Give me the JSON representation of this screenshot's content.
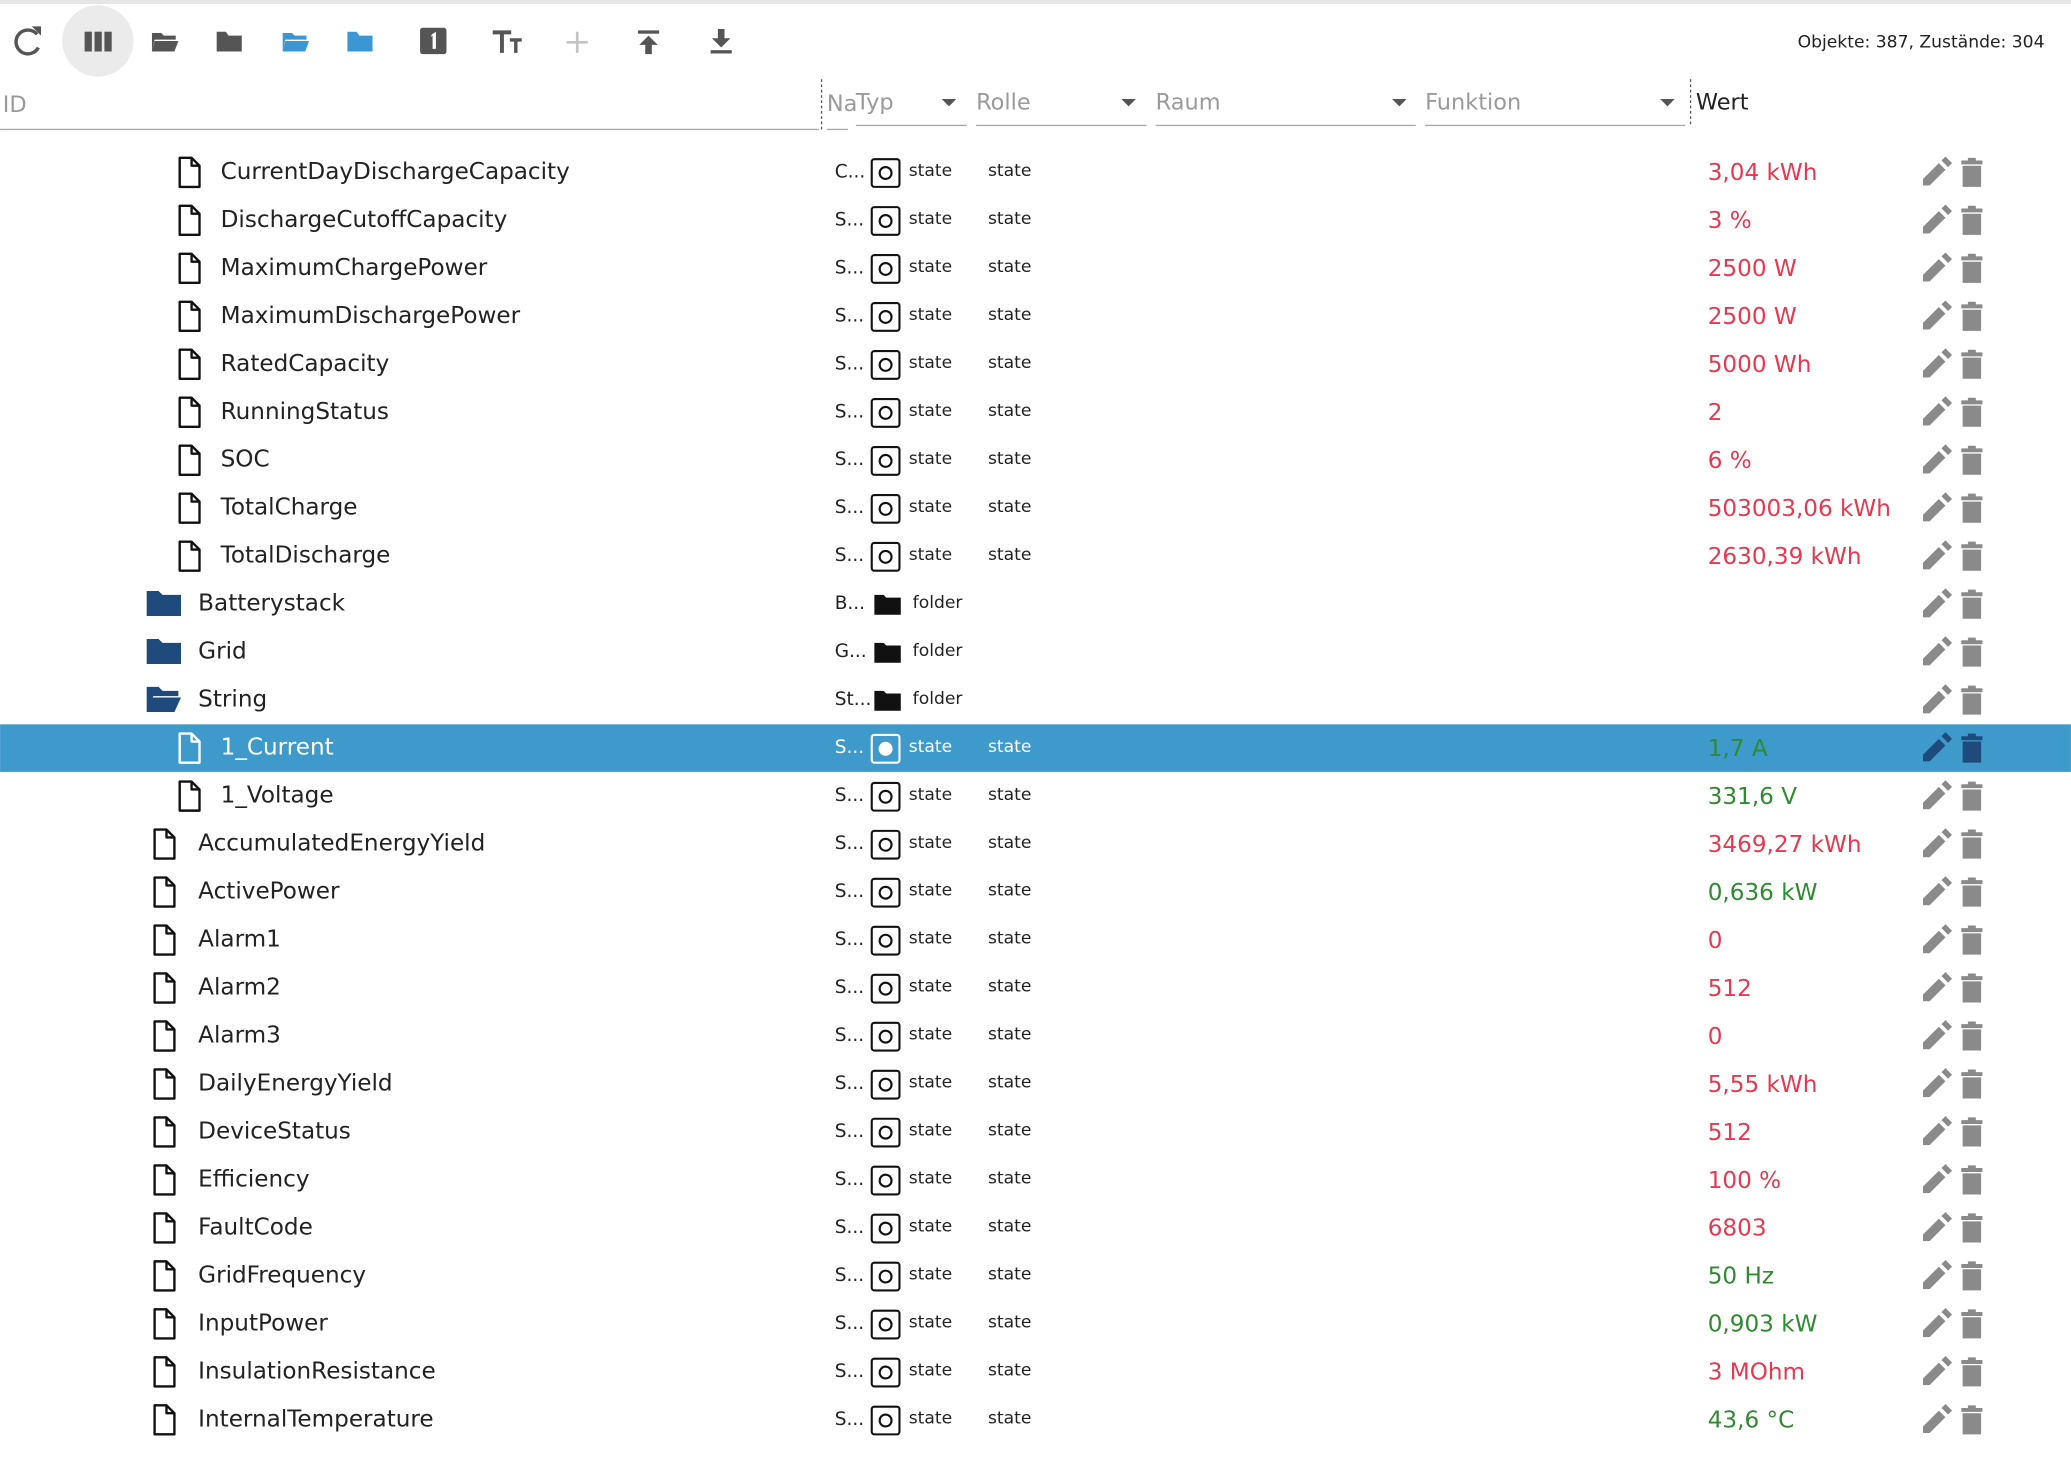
{
  "toolbar": {
    "stats": "Objekte: 387, Zustände: 304"
  },
  "columns": {
    "id": "ID",
    "name": "Na",
    "type": "Typ",
    "role": "Rolle",
    "room": "Raum",
    "function": "Funktion",
    "value": "Wert"
  },
  "battery_rows": [
    {
      "id": "CurrentDayDischargeCapacity",
      "name": "C...",
      "type": "state",
      "role": "state",
      "value": "3,04 kWh",
      "color": "#e8384f"
    },
    {
      "id": "DischargeCutoffCapacity",
      "name": "S...",
      "type": "state",
      "role": "state",
      "value": "3 %",
      "color": "#e8384f"
    },
    {
      "id": "MaximumChargePower",
      "name": "S...",
      "type": "state",
      "role": "state",
      "value": "2500 W",
      "color": "#e8384f"
    },
    {
      "id": "MaximumDischargePower",
      "name": "S...",
      "type": "state",
      "role": "state",
      "value": "2500 W",
      "color": "#e8384f"
    },
    {
      "id": "RatedCapacity",
      "name": "S...",
      "type": "state",
      "role": "state",
      "value": "5000 Wh",
      "color": "#e8384f"
    },
    {
      "id": "RunningStatus",
      "name": "S...",
      "type": "state",
      "role": "state",
      "value": "2",
      "color": "#e8384f"
    },
    {
      "id": "SOC",
      "name": "S...",
      "type": "state",
      "role": "state",
      "value": "6 %",
      "color": "#e8384f"
    },
    {
      "id": "TotalCharge",
      "name": "S...",
      "type": "state",
      "role": "state",
      "value": "503003,06 kWh",
      "color": "#e8384f"
    },
    {
      "id": "TotalDischarge",
      "name": "S...",
      "type": "state",
      "role": "state",
      "value": "2630,39 kWh",
      "color": "#e8384f"
    }
  ],
  "folders": [
    {
      "id": "Batterystack",
      "name": "B...",
      "type": "folder"
    },
    {
      "id": "Grid",
      "name": "G...",
      "type": "folder"
    },
    {
      "id": "String",
      "name": "St...",
      "type": "folder",
      "open": true,
      "children": [
        {
          "id": "1_Current",
          "name": "S...",
          "type": "state",
          "role": "state",
          "value": "1,7 A",
          "color": "#2e8b2e",
          "selected": true
        },
        {
          "id": "1_Voltage",
          "name": "S...",
          "type": "state",
          "role": "state",
          "value": "331,6 V",
          "color": "#2e8b2e"
        }
      ]
    }
  ],
  "device_rows": [
    {
      "id": "AccumulatedEnergyYield",
      "name": "S...",
      "type": "state",
      "role": "state",
      "value": "3469,27 kWh",
      "color": "#e8384f"
    },
    {
      "id": "ActivePower",
      "name": "S...",
      "type": "state",
      "role": "state",
      "value": "0,636 kW",
      "color": "#2e8b2e"
    },
    {
      "id": "Alarm1",
      "name": "S...",
      "type": "state",
      "role": "state",
      "value": "0",
      "color": "#e8384f"
    },
    {
      "id": "Alarm2",
      "name": "S...",
      "type": "state",
      "role": "state",
      "value": "512",
      "color": "#e8384f"
    },
    {
      "id": "Alarm3",
      "name": "S...",
      "type": "state",
      "role": "state",
      "value": "0",
      "color": "#e8384f"
    },
    {
      "id": "DailyEnergyYield",
      "name": "S...",
      "type": "state",
      "role": "state",
      "value": "5,55 kWh",
      "color": "#e8384f"
    },
    {
      "id": "DeviceStatus",
      "name": "S...",
      "type": "state",
      "role": "state",
      "value": "512",
      "color": "#e8384f"
    },
    {
      "id": "Efficiency",
      "name": "S...",
      "type": "state",
      "role": "state",
      "value": "100 %",
      "color": "#e8384f"
    },
    {
      "id": "FaultCode",
      "name": "S...",
      "type": "state",
      "role": "state",
      "value": "6803",
      "color": "#e8384f"
    },
    {
      "id": "GridFrequency",
      "name": "S...",
      "type": "state",
      "role": "state",
      "value": "50 Hz",
      "color": "#2e8b2e"
    },
    {
      "id": "InputPower",
      "name": "S...",
      "type": "state",
      "role": "state",
      "value": "0,903 kW",
      "color": "#2e8b2e"
    },
    {
      "id": "InsulationResistance",
      "name": "S...",
      "type": "state",
      "role": "state",
      "value": "3 MOhm",
      "color": "#e8384f"
    },
    {
      "id": "InternalTemperature",
      "name": "S...",
      "type": "state",
      "role": "state",
      "value": "43,6 °C",
      "color": "#2e8b2e"
    }
  ]
}
